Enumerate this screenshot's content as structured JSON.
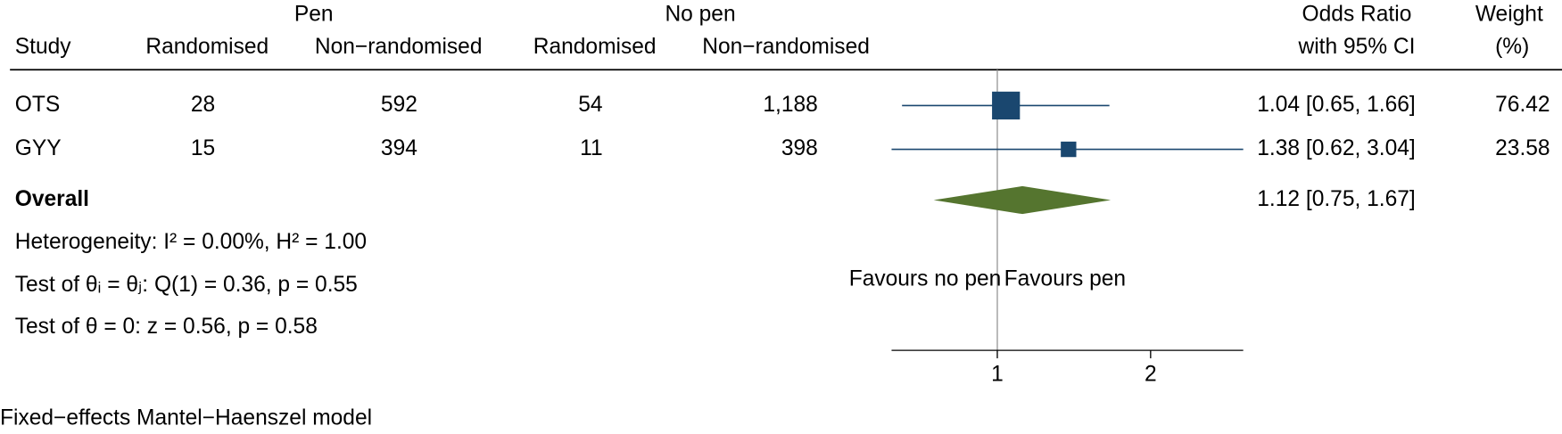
{
  "chart_data": {
    "type": "forest",
    "column_groups": [
      "Pen",
      "No pen"
    ],
    "columns": [
      "Study",
      "Randomised",
      "Non−randomised",
      "Randomised",
      "Non−randomised"
    ],
    "effect_header": [
      "Odds Ratio",
      "with 95% CI"
    ],
    "weight_header": [
      "Weight",
      "(%)"
    ],
    "categories": [
      "OTS",
      "GYY"
    ],
    "table": [
      [
        "28",
        "592",
        "54",
        "1,188"
      ],
      [
        "15",
        "394",
        "11",
        "398"
      ]
    ],
    "values": [
      1.04,
      1.38
    ],
    "ci_low": [
      0.65,
      0.62
    ],
    "ci_high": [
      1.66,
      3.04
    ],
    "value_labels": [
      "1.04 [0.65, 1.66]",
      "1.38 [0.62, 3.04]"
    ],
    "weights": [
      76.42,
      23.58
    ],
    "color": "#1a476f",
    "overall": {
      "label": "Overall",
      "value": 1.12,
      "ci_low": 0.75,
      "ci_high": 1.67,
      "value_label": "1.12 [0.75, 1.67]",
      "color": "#55752f"
    },
    "stats": [
      "Heterogeneity: I² = 0.00%, H² = 1.00",
      "Test of θᵢ = θⱼ: Q(1) = 0.36, p = 0.55",
      "Test of θ = 0: z = 0.56, p = 0.58"
    ],
    "favours": [
      "Favours no pen",
      "Favours pen"
    ],
    "xscale": "log",
    "xlim": [
      0.62,
      3.04
    ],
    "xticks": [
      1,
      2
    ],
    "note": "Fixed−effects Mantel−Haenszel model"
  }
}
